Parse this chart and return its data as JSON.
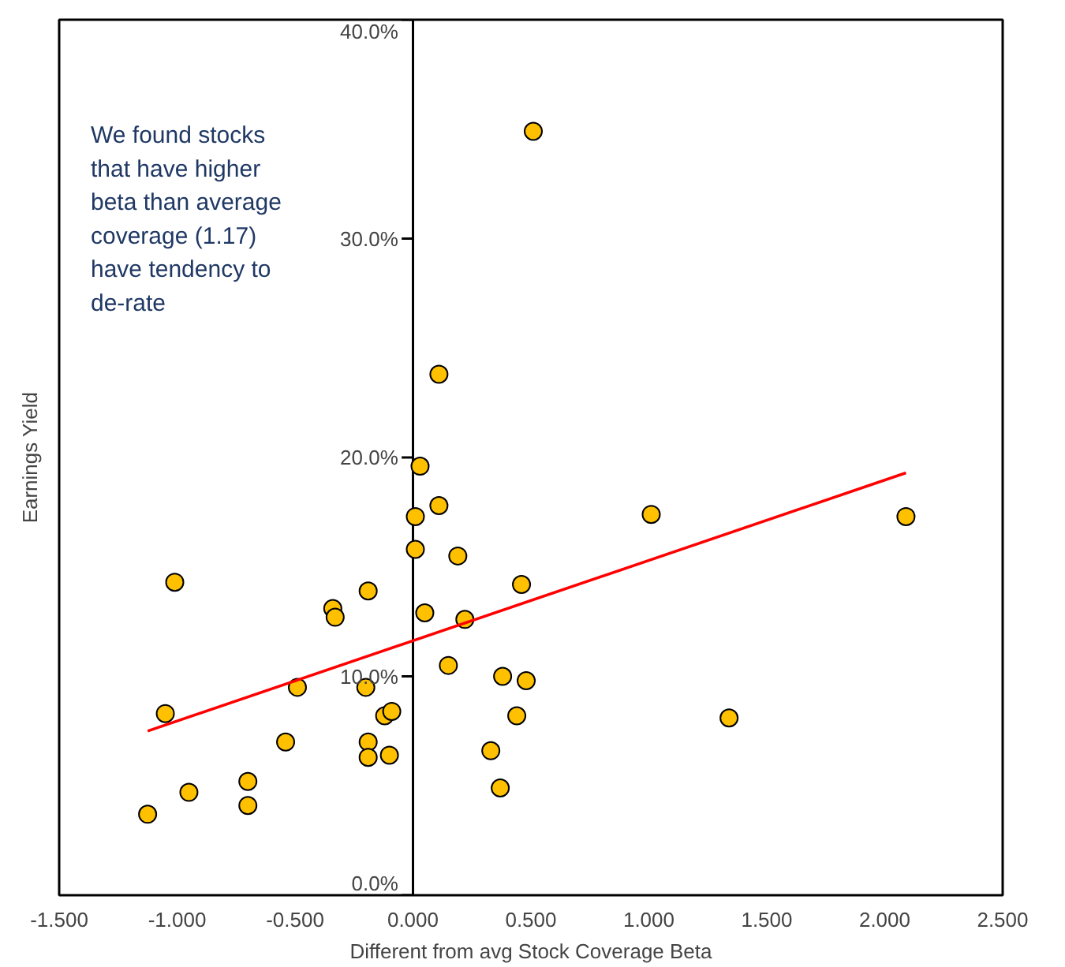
{
  "chart_data": {
    "type": "scatter",
    "xlabel": "Different from avg Stock Coverage Beta",
    "ylabel": "Earnings Yield",
    "annotations": [
      "We found stocks\nthat have higher\nbeta than average\ncoverage (1.17)\nhave tendency to\nde-rate"
    ],
    "xlim": [
      -1.5,
      2.5
    ],
    "ylim": [
      0,
      40
    ],
    "xticks": [
      {
        "value": -1.5,
        "label": "-1.500"
      },
      {
        "value": -1,
        "label": "-1.000"
      },
      {
        "value": -0.5,
        "label": "-0.500"
      },
      {
        "value": 0,
        "label": "0.000"
      },
      {
        "value": 0.5,
        "label": "0.500"
      },
      {
        "value": 1,
        "label": "1.000"
      },
      {
        "value": 1.5,
        "label": "1.500"
      },
      {
        "value": 2,
        "label": "2.000"
      },
      {
        "value": 2.5,
        "label": "2.500"
      }
    ],
    "yticks": [
      {
        "value": 0,
        "label": "0.0%"
      },
      {
        "value": 10,
        "label": "10.0%"
      },
      {
        "value": 20,
        "label": "20.0%"
      },
      {
        "value": 30,
        "label": "30.0%"
      },
      {
        "value": 40,
        "label": "40.0%"
      }
    ],
    "grid": false,
    "series": [
      {
        "type": "scatter",
        "marker": "circle",
        "color": "#ffc000",
        "x": [
          -1.125,
          -1.05,
          -1.01,
          -0.95,
          -0.7,
          -0.7,
          -0.54,
          -0.49,
          -0.34,
          -0.33,
          -0.19,
          -0.2,
          -0.19,
          -0.19,
          -0.12,
          -0.09,
          -0.1,
          0.03,
          0.01,
          0.01,
          0.05,
          0.11,
          0.11,
          0.15,
          0.19,
          0.22,
          0.33,
          0.37,
          0.38,
          0.44,
          0.46,
          0.48,
          0.51,
          1.01,
          1.34,
          2.09
        ],
        "values": [
          3.7,
          8.3,
          14.3,
          4.7,
          5.2,
          4.1,
          7.0,
          9.5,
          13.1,
          12.7,
          13.9,
          9.5,
          7.0,
          6.3,
          8.2,
          8.4,
          6.4,
          19.6,
          17.3,
          15.8,
          12.9,
          23.8,
          17.8,
          10.5,
          15.5,
          12.6,
          6.6,
          4.9,
          10.0,
          8.2,
          14.2,
          9.8,
          34.9,
          17.4,
          8.1,
          17.3
        ]
      },
      {
        "type": "line",
        "color": "#ff0000",
        "x": [
          -1.125,
          2.09
        ],
        "values": [
          7.5,
          19.3
        ]
      }
    ]
  }
}
